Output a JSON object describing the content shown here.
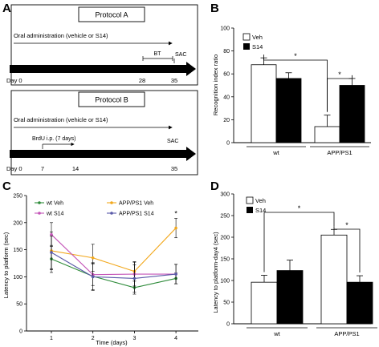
{
  "panel_labels": {
    "a": "A",
    "b": "B",
    "c": "C",
    "d": "D"
  },
  "protocol_a": {
    "title": "Protocol A",
    "admin_text": "Oral administration (vehicle or S14)",
    "bt_label": "BT",
    "sac_label": "SAC",
    "timeline_ticks": [
      "Day 0",
      "28",
      "35"
    ]
  },
  "protocol_b": {
    "title": "Protocol B",
    "admin_text": "Oral administration (vehicle or S14)",
    "brdu_label": "BrdU i.p. (7 days)",
    "sac_label": "SAC",
    "timeline_ticks": [
      "Day 0",
      "7",
      "14",
      "35"
    ]
  },
  "colors": {
    "veh_fill": "#ffffff",
    "s14_fill": "#000000",
    "wt_veh": "#2e8b3a",
    "app_veh": "#f2a81d",
    "wt_s14": "#c455b8",
    "app_s14": "#5a5aa8"
  },
  "chart_data": [
    {
      "id": "B",
      "type": "bar",
      "ylabel": "Recognition index ratio",
      "ylim": [
        0,
        100
      ],
      "yticks": [
        0,
        20,
        40,
        60,
        80,
        100
      ],
      "categories": [
        "wt",
        "APP/PS1"
      ],
      "series": [
        {
          "name": "Veh",
          "values": [
            68,
            14
          ],
          "errors": [
            6,
            10
          ]
        },
        {
          "name": "S14",
          "values": [
            56,
            50
          ],
          "errors": [
            5,
            6
          ]
        }
      ],
      "annotations": [
        "*",
        "*"
      ],
      "legend": "top-left"
    },
    {
      "id": "C",
      "type": "line",
      "xlabel": "Time (days)",
      "ylabel": "Latency to platform (sec)",
      "x": [
        1,
        2,
        3,
        4
      ],
      "xticks": [
        "1",
        "2",
        "3",
        "4"
      ],
      "ylim": [
        0,
        250
      ],
      "yticks": [
        0,
        50,
        100,
        150,
        200,
        250
      ],
      "series": [
        {
          "name": "wt Veh",
          "values": [
            133,
            101,
            80,
            97
          ],
          "errors": [
            25,
            25,
            12,
            10
          ]
        },
        {
          "name": "APP/PS1 Veh",
          "values": [
            148,
            135,
            110,
            190
          ],
          "errors": [
            35,
            25,
            18,
            18
          ]
        },
        {
          "name": "wt S14",
          "values": [
            178,
            104,
            105,
            105
          ],
          "errors": [
            22,
            20,
            22,
            18
          ]
        },
        {
          "name": "APP/PS1 S14",
          "values": [
            145,
            100,
            97,
            105
          ],
          "errors": [
            30,
            25,
            25,
            18
          ]
        }
      ],
      "annotations": [
        "*"
      ],
      "legend": "top"
    },
    {
      "id": "D",
      "type": "bar",
      "ylabel": "Latency to platform-day4 (sec)",
      "ylim": [
        0,
        300
      ],
      "yticks": [
        0,
        50,
        100,
        150,
        200,
        250,
        300
      ],
      "categories": [
        "wt",
        "APP/PS1"
      ],
      "series": [
        {
          "name": "Veh",
          "values": [
            96,
            205
          ],
          "errors": [
            16,
            13
          ]
        },
        {
          "name": "S14",
          "values": [
            123,
            96
          ],
          "errors": [
            24,
            15
          ]
        }
      ],
      "annotations": [
        "*",
        "*"
      ],
      "legend": "top-left"
    }
  ]
}
